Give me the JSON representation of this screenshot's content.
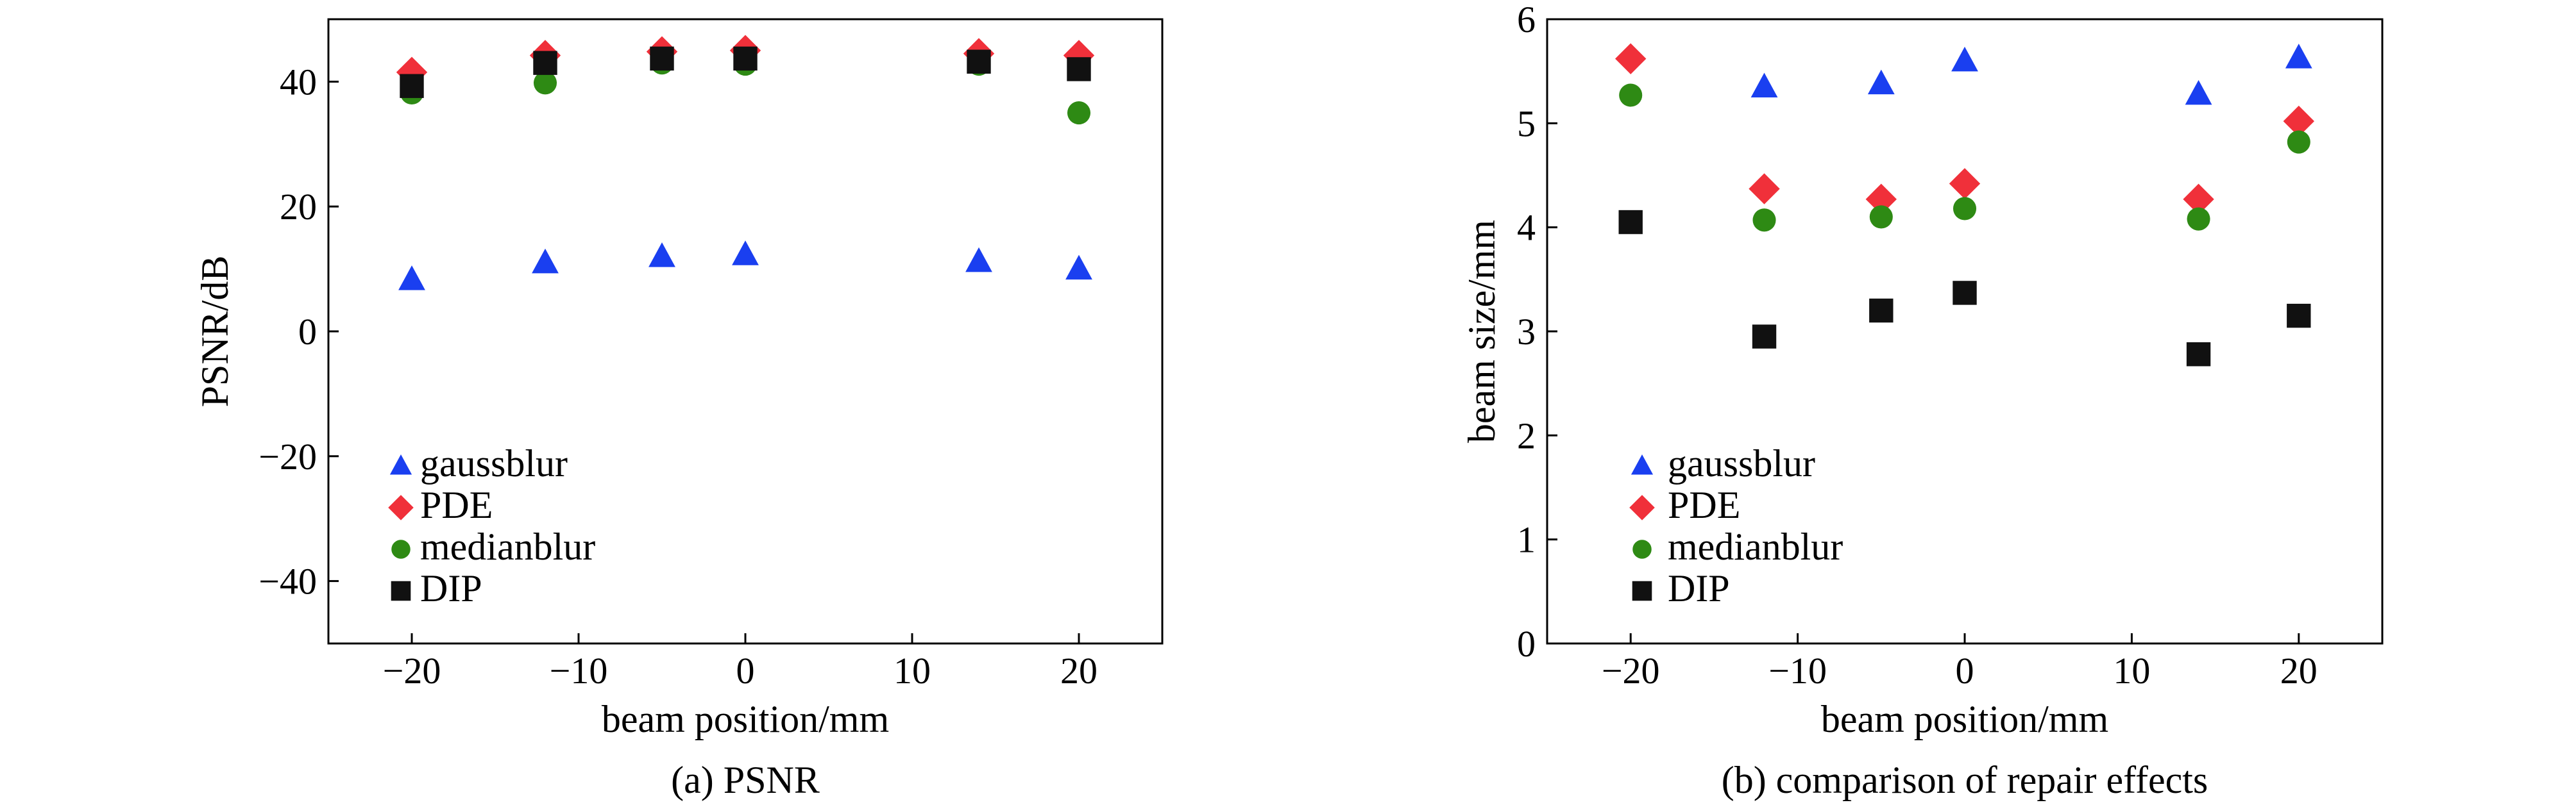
{
  "legend_labels": [
    "gaussblur",
    "PDE",
    "medianblur",
    "DIP"
  ],
  "chart_data": [
    {
      "type": "scatter",
      "caption": "(a) PSNR",
      "xlabel": "beam position/mm",
      "ylabel": "PSNR/dB",
      "xlim": [
        -25,
        25
      ],
      "ylim": [
        -50,
        50
      ],
      "xticks": [
        -20,
        -10,
        0,
        10,
        20
      ],
      "yticks": [
        -40,
        -20,
        0,
        20,
        40
      ],
      "xtick_labels": [
        "−20",
        "−10",
        "0",
        "10",
        "20"
      ],
      "ytick_labels": [
        "−40",
        "−20",
        "0",
        "20",
        "40"
      ],
      "grid": false,
      "legend_position": "lower-left",
      "series": [
        {
          "name": "gaussblur",
          "marker": "triangle",
          "color": "#1a3ff0",
          "points": [
            [
              -20,
              8.3
            ],
            [
              -12,
              11.0
            ],
            [
              -5,
              12.0
            ],
            [
              0,
              12.3
            ],
            [
              14,
              11.2
            ],
            [
              20,
              10.0
            ]
          ]
        },
        {
          "name": "PDE",
          "marker": "diamond",
          "color": "#f0303a",
          "points": [
            [
              -20,
              41.5
            ],
            [
              -12,
              44.2
            ],
            [
              -5,
              44.8
            ],
            [
              0,
              45.0
            ],
            [
              14,
              44.5
            ],
            [
              20,
              44.2
            ]
          ]
        },
        {
          "name": "medianblur",
          "marker": "circle",
          "color": "#2e8a14",
          "points": [
            [
              -20,
              38.2
            ],
            [
              -12,
              39.8
            ],
            [
              -5,
              43.0
            ],
            [
              0,
              42.8
            ],
            [
              14,
              42.8
            ],
            [
              20,
              35.0
            ]
          ]
        },
        {
          "name": "DIP",
          "marker": "square",
          "color": "#111111",
          "points": [
            [
              -20,
              39.3
            ],
            [
              -12,
              43.0
            ],
            [
              -5,
              43.7
            ],
            [
              0,
              43.7
            ],
            [
              14,
              43.2
            ],
            [
              20,
              42.0
            ]
          ]
        }
      ]
    },
    {
      "type": "scatter",
      "caption": "(b) comparison of repair effects",
      "xlabel": "beam position/mm",
      "ylabel": "beam size/mm",
      "xlim": [
        -25,
        25
      ],
      "ylim": [
        0,
        6
      ],
      "xticks": [
        -20,
        -10,
        0,
        10,
        20
      ],
      "yticks": [
        0,
        1,
        2,
        3,
        4,
        5,
        6
      ],
      "xtick_labels": [
        "−20",
        "−10",
        "0",
        "10",
        "20"
      ],
      "ytick_labels": [
        "0",
        "1",
        "2",
        "3",
        "4",
        "5",
        "6"
      ],
      "grid": false,
      "legend_position": "lower-left",
      "series": [
        {
          "name": "gaussblur",
          "marker": "triangle",
          "color": "#1a3ff0",
          "points": [
            [
              -12,
              5.35
            ],
            [
              -5,
              5.38
            ],
            [
              0,
              5.6
            ],
            [
              14,
              5.28
            ],
            [
              20,
              5.63
            ]
          ]
        },
        {
          "name": "PDE",
          "marker": "diamond",
          "color": "#f0303a",
          "points": [
            [
              -20,
              5.62
            ],
            [
              -12,
              4.37
            ],
            [
              -5,
              4.27
            ],
            [
              0,
              4.42
            ],
            [
              14,
              4.27
            ],
            [
              20,
              5.02
            ]
          ]
        },
        {
          "name": "medianblur",
          "marker": "circle",
          "color": "#2e8a14",
          "points": [
            [
              -20,
              5.27
            ],
            [
              -12,
              4.07
            ],
            [
              -5,
              4.1
            ],
            [
              0,
              4.18
            ],
            [
              14,
              4.08
            ],
            [
              20,
              4.82
            ]
          ]
        },
        {
          "name": "DIP",
          "marker": "square",
          "color": "#111111",
          "points": [
            [
              -20,
              4.05
            ],
            [
              -12,
              2.95
            ],
            [
              -5,
              3.2
            ],
            [
              0,
              3.37
            ],
            [
              14,
              2.78
            ],
            [
              20,
              3.15
            ]
          ]
        }
      ]
    }
  ]
}
